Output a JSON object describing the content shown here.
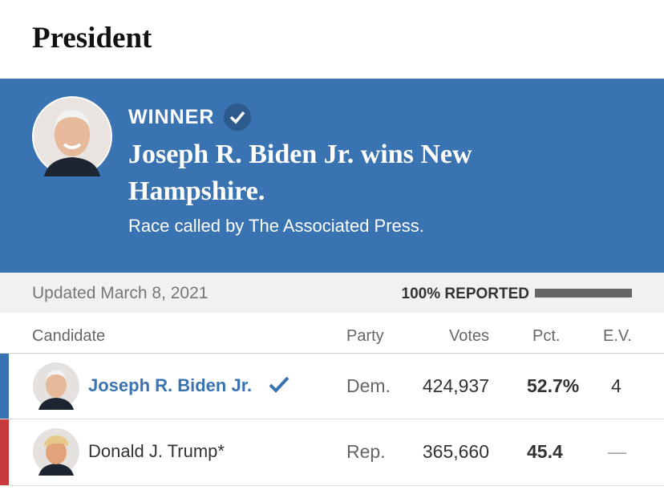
{
  "header": {
    "title": "President"
  },
  "banner": {
    "label": "WINNER",
    "headline": "Joseph R. Biden Jr. wins New Hampshire.",
    "note": "Race called by The Associated Press."
  },
  "status": {
    "updated": "Updated March 8, 2021",
    "reported": "100% REPORTED"
  },
  "table": {
    "columns": [
      "Candidate",
      "Party",
      "Votes",
      "Pct.",
      "E.V."
    ],
    "rows": [
      [
        "Joseph R. Biden Jr.",
        "Dem.",
        "424,937",
        "52.7%",
        "4"
      ],
      [
        "Donald J. Trump*",
        "Rep.",
        "365,660",
        "45.4",
        "—"
      ]
    ]
  }
}
